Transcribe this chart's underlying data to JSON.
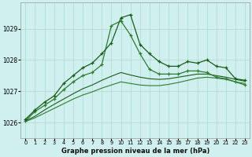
{
  "title": "Graphe pression niveau de la mer (hPa)",
  "background_color": "#cff0ee",
  "grid_color": "#b0d8d0",
  "line_color_dark": "#1a5c1a",
  "line_color_mid": "#2e7d2e",
  "line_color_light": "#3a9a3a",
  "xlim": [
    -0.5,
    23.5
  ],
  "ylim": [
    1025.5,
    1029.85
  ],
  "yticks": [
    1026,
    1027,
    1028,
    1029
  ],
  "xticks": [
    0,
    1,
    2,
    3,
    4,
    5,
    6,
    7,
    8,
    9,
    10,
    11,
    12,
    13,
    14,
    15,
    16,
    17,
    18,
    19,
    20,
    21,
    22,
    23
  ],
  "series1_x": [
    0,
    1,
    2,
    3,
    4,
    5,
    6,
    7,
    8,
    9,
    10,
    11,
    12,
    13,
    14,
    15,
    16,
    17,
    18,
    19,
    20,
    21,
    22,
    23
  ],
  "series1_y": [
    1026.1,
    1026.4,
    1026.65,
    1026.85,
    1027.25,
    1027.5,
    1027.75,
    1027.9,
    1028.2,
    1028.55,
    1029.35,
    1029.45,
    1028.5,
    1028.2,
    1027.95,
    1027.8,
    1027.8,
    1027.95,
    1027.9,
    1028.0,
    1027.8,
    1027.75,
    1027.4,
    1027.35
  ],
  "series2_x": [
    0,
    1,
    2,
    3,
    4,
    5,
    6,
    7,
    8,
    9,
    10,
    11,
    12,
    13,
    14,
    15,
    16,
    17,
    18,
    19,
    20,
    21,
    22,
    23
  ],
  "series2_y": [
    1026.05,
    1026.35,
    1026.55,
    1026.75,
    1027.05,
    1027.3,
    1027.5,
    1027.6,
    1027.85,
    1029.1,
    1029.25,
    1028.8,
    1028.2,
    1027.7,
    1027.55,
    1027.55,
    1027.55,
    1027.65,
    1027.65,
    1027.6,
    1027.45,
    1027.4,
    1027.3,
    1027.2
  ],
  "series3_x": [
    0,
    1,
    2,
    3,
    4,
    5,
    6,
    7,
    8,
    9,
    10,
    11,
    12,
    13,
    14,
    15,
    16,
    17,
    18,
    19,
    20,
    21,
    22,
    23
  ],
  "series3_y": [
    1026.05,
    1026.2,
    1026.4,
    1026.58,
    1026.75,
    1026.92,
    1027.08,
    1027.2,
    1027.35,
    1027.48,
    1027.6,
    1027.52,
    1027.45,
    1027.4,
    1027.38,
    1027.4,
    1027.45,
    1027.5,
    1027.55,
    1027.55,
    1027.5,
    1027.45,
    1027.38,
    1027.32
  ],
  "series4_x": [
    0,
    1,
    2,
    3,
    4,
    5,
    6,
    7,
    8,
    9,
    10,
    11,
    12,
    13,
    14,
    15,
    16,
    17,
    18,
    19,
    20,
    21,
    22,
    23
  ],
  "series4_y": [
    1026.03,
    1026.15,
    1026.3,
    1026.45,
    1026.6,
    1026.75,
    1026.88,
    1026.98,
    1027.1,
    1027.2,
    1027.3,
    1027.25,
    1027.2,
    1027.18,
    1027.18,
    1027.22,
    1027.28,
    1027.35,
    1027.42,
    1027.45,
    1027.42,
    1027.38,
    1027.3,
    1027.25
  ]
}
